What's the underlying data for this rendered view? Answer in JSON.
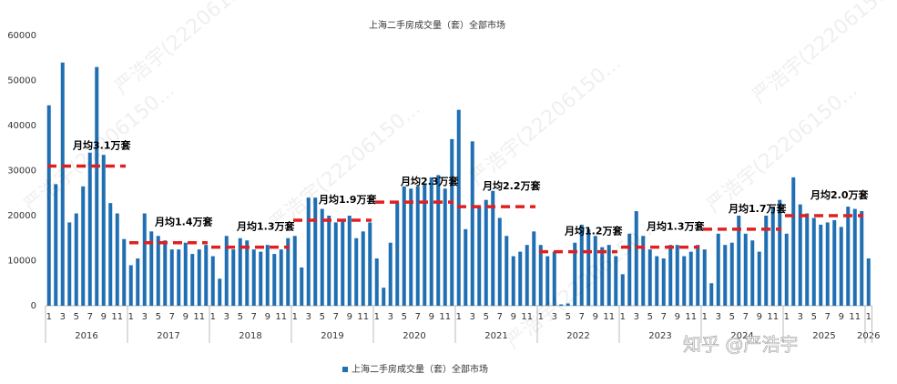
{
  "chart_data": {
    "type": "bar",
    "title": "上海二手房成交量（套）全部市场",
    "categories": [
      "1",
      null,
      "3",
      null,
      "5",
      null,
      "7",
      null,
      "9",
      null,
      "11",
      null,
      "1",
      null,
      "3",
      null,
      "5",
      null,
      "7",
      null,
      "9",
      null,
      "11",
      null,
      "1",
      null,
      "3",
      null,
      "5",
      null,
      "7",
      null,
      "9",
      null,
      "11",
      null,
      "1",
      null,
      "3",
      null,
      "5",
      null,
      "7",
      null,
      "9",
      null,
      "11",
      null,
      "1",
      null,
      "3",
      null,
      "5",
      null,
      "7",
      null,
      "9",
      null,
      "11",
      null,
      "1",
      null,
      "3",
      null,
      "5",
      null,
      "7",
      null,
      "9",
      null,
      "11",
      null,
      "1",
      null,
      "3",
      null,
      "5",
      null,
      "7",
      null,
      "9",
      null,
      "11",
      null,
      "1",
      null,
      "3",
      null,
      "5",
      null,
      "7",
      null,
      "9",
      null,
      "11",
      null,
      "1",
      null,
      "3",
      null,
      "5",
      null,
      "7",
      null,
      "9",
      null,
      "11",
      null,
      "1",
      null,
      "3",
      null,
      "5",
      null,
      "7",
      null,
      "9",
      null,
      "11",
      null,
      "1"
    ],
    "years": [
      "2016",
      "2017",
      "2018",
      "2019",
      "2020",
      "2021",
      "2022",
      "2023",
      "2024",
      "2025",
      "2026"
    ],
    "series": [
      {
        "name": "上海二手房成交量（套）全部市场",
        "color": "#1f6fb2",
        "values": [
          44500,
          27000,
          54000,
          18500,
          20500,
          26500,
          34000,
          53000,
          33500,
          22800,
          20500,
          14800,
          9000,
          10500,
          20500,
          16500,
          15500,
          14500,
          12500,
          12500,
          14000,
          11500,
          12500,
          13500,
          11000,
          6000,
          15500,
          12500,
          15000,
          14500,
          12500,
          12000,
          13500,
          11500,
          12500,
          15000,
          15500,
          8500,
          24000,
          24000,
          21500,
          20000,
          18500,
          19000,
          20000,
          15000,
          16500,
          18500,
          10500,
          4000,
          14000,
          23000,
          26500,
          26000,
          26500,
          27000,
          28500,
          29000,
          26000,
          37000,
          43500,
          17000,
          36500,
          22000,
          23500,
          25500,
          19500,
          15500,
          11000,
          12000,
          13500,
          16500,
          13500,
          11000,
          12000,
          300,
          500,
          14000,
          18000,
          17000,
          15500,
          13000,
          13500,
          11000,
          7000,
          16000,
          21000,
          15500,
          12500,
          11000,
          10500,
          13500,
          13500,
          11000,
          12000,
          13500,
          12500,
          5000,
          16000,
          13500,
          14000,
          20000,
          16000,
          14500,
          12000,
          20000,
          22000,
          23500,
          16000,
          28500,
          22500,
          20500,
          19500,
          18000,
          18500,
          19000,
          17500,
          22000,
          21500,
          21000,
          10500
        ]
      }
    ],
    "annotations": [
      {
        "text": "月均3.1万套",
        "value": 31000
      },
      {
        "text": "月均1.4万套",
        "value": 14000
      },
      {
        "text": "月均1.3万套",
        "value": 13000
      },
      {
        "text": "月均1.9万套",
        "value": 19000
      },
      {
        "text": "月均2.3万套",
        "value": 23000
      },
      {
        "text": "月均2.2万套",
        "value": 22000
      },
      {
        "text": "月均1.2万套",
        "value": 12000
      },
      {
        "text": "月均1.3万套",
        "value": 13000
      },
      {
        "text": "月均1.7万套",
        "value": 17000
      },
      {
        "text": "月均2.0万套",
        "value": 20000
      }
    ],
    "annotation_color": "#e02020",
    "ylim": [
      0,
      60000
    ],
    "yticks": [
      0,
      10000,
      20000,
      30000,
      40000,
      50000,
      60000
    ],
    "grid": false,
    "watermark": "严浩宇(22206150...",
    "credit": "知乎 @严浩宇"
  }
}
